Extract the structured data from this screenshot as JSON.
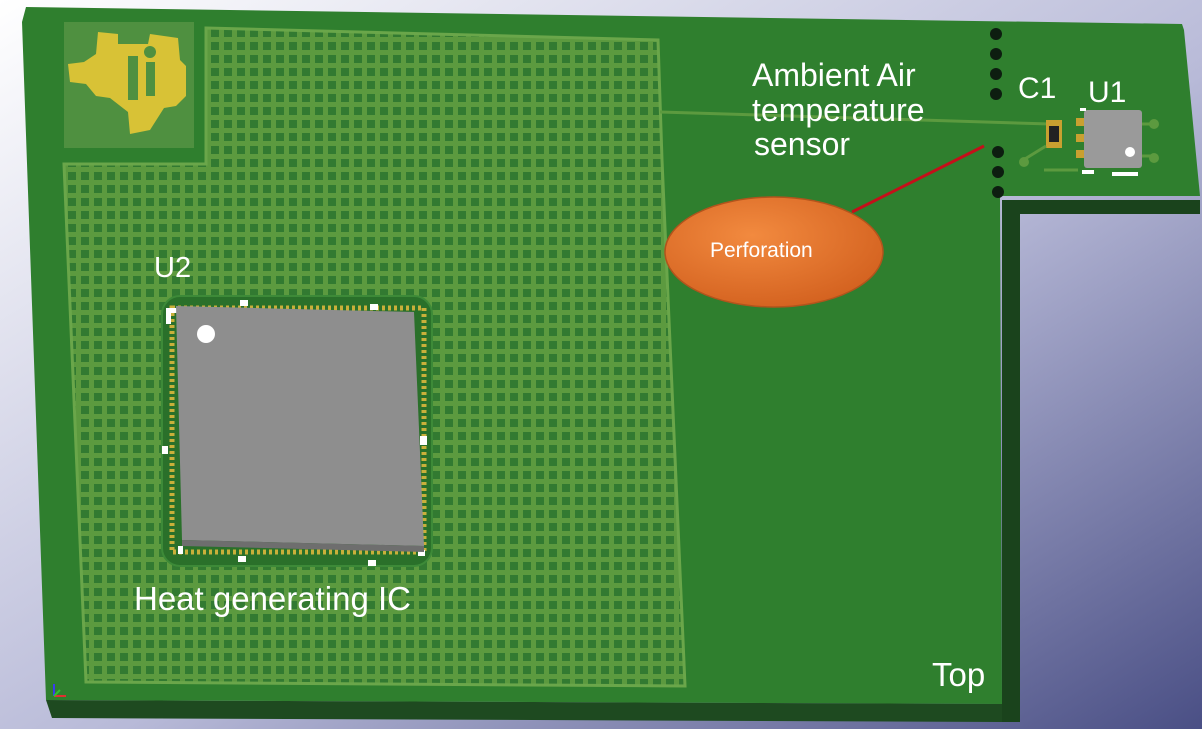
{
  "colors": {
    "board": "#2f7f2e",
    "board_edge": "#1e4a20",
    "grid_pattern": "#5c9a3f",
    "ic_body": "#8e8e8e",
    "logo": "#d8c236",
    "perforation_bubble": "#e0722e",
    "leader_line": "#c4101a",
    "background_gradient": [
      "#ffffff",
      "#4a4f85"
    ]
  },
  "icons": {
    "logo": "texas-instruments-logo-icon",
    "perforation_holes": "via-hole-icon"
  },
  "labels": {
    "u2": "U2",
    "heat_ic": "Heat generating IC",
    "ambient_line1": "Ambient Air",
    "ambient_line2": "temperature",
    "ambient_line3": "sensor",
    "c1": "C1",
    "u1": "U1",
    "top": "Top",
    "perforation": "Perforation"
  }
}
